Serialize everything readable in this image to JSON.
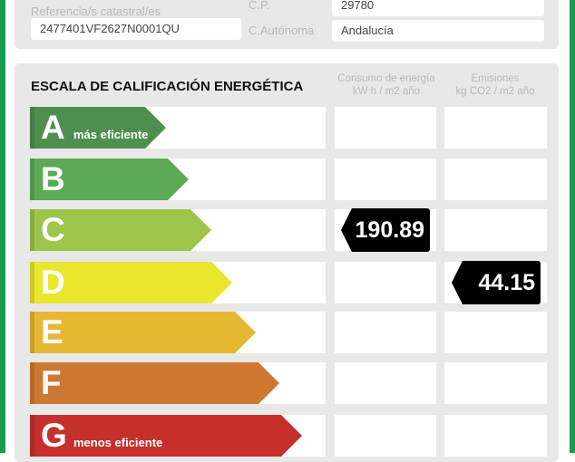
{
  "header": {
    "ref_label": "Referencia/s catastral/es",
    "ref_value": "2477401VF2627N0001QU",
    "cp_label": "C.P.",
    "cp_value": "29780",
    "ca_label": "C.Autónoma",
    "ca_value": "Andalucía"
  },
  "scale": {
    "title": "ESCALA DE CALIFICACIÓN ENERGÉTICA",
    "consumo_header": "Consumo de energía",
    "consumo_unit": "kW h / m2 año",
    "emisiones_header": "Emisiones",
    "emisiones_unit": "kg CO2 / m2 año",
    "ratings": [
      {
        "letter": "A",
        "sub": "más eficiente",
        "color": "#4e8f50"
      },
      {
        "letter": "B",
        "sub": "",
        "color": "#5caa55"
      },
      {
        "letter": "C",
        "sub": "",
        "color": "#9cc54a"
      },
      {
        "letter": "D",
        "sub": "",
        "color": "#e9e62e"
      },
      {
        "letter": "E",
        "sub": "",
        "color": "#e6b733"
      },
      {
        "letter": "F",
        "sub": "",
        "color": "#cd7832"
      },
      {
        "letter": "G",
        "sub": "menos eficiente",
        "color": "#c5302c"
      }
    ],
    "consumo": {
      "rating": "C",
      "value": "190.89"
    },
    "emisiones": {
      "rating": "D",
      "value": "44.15"
    }
  }
}
